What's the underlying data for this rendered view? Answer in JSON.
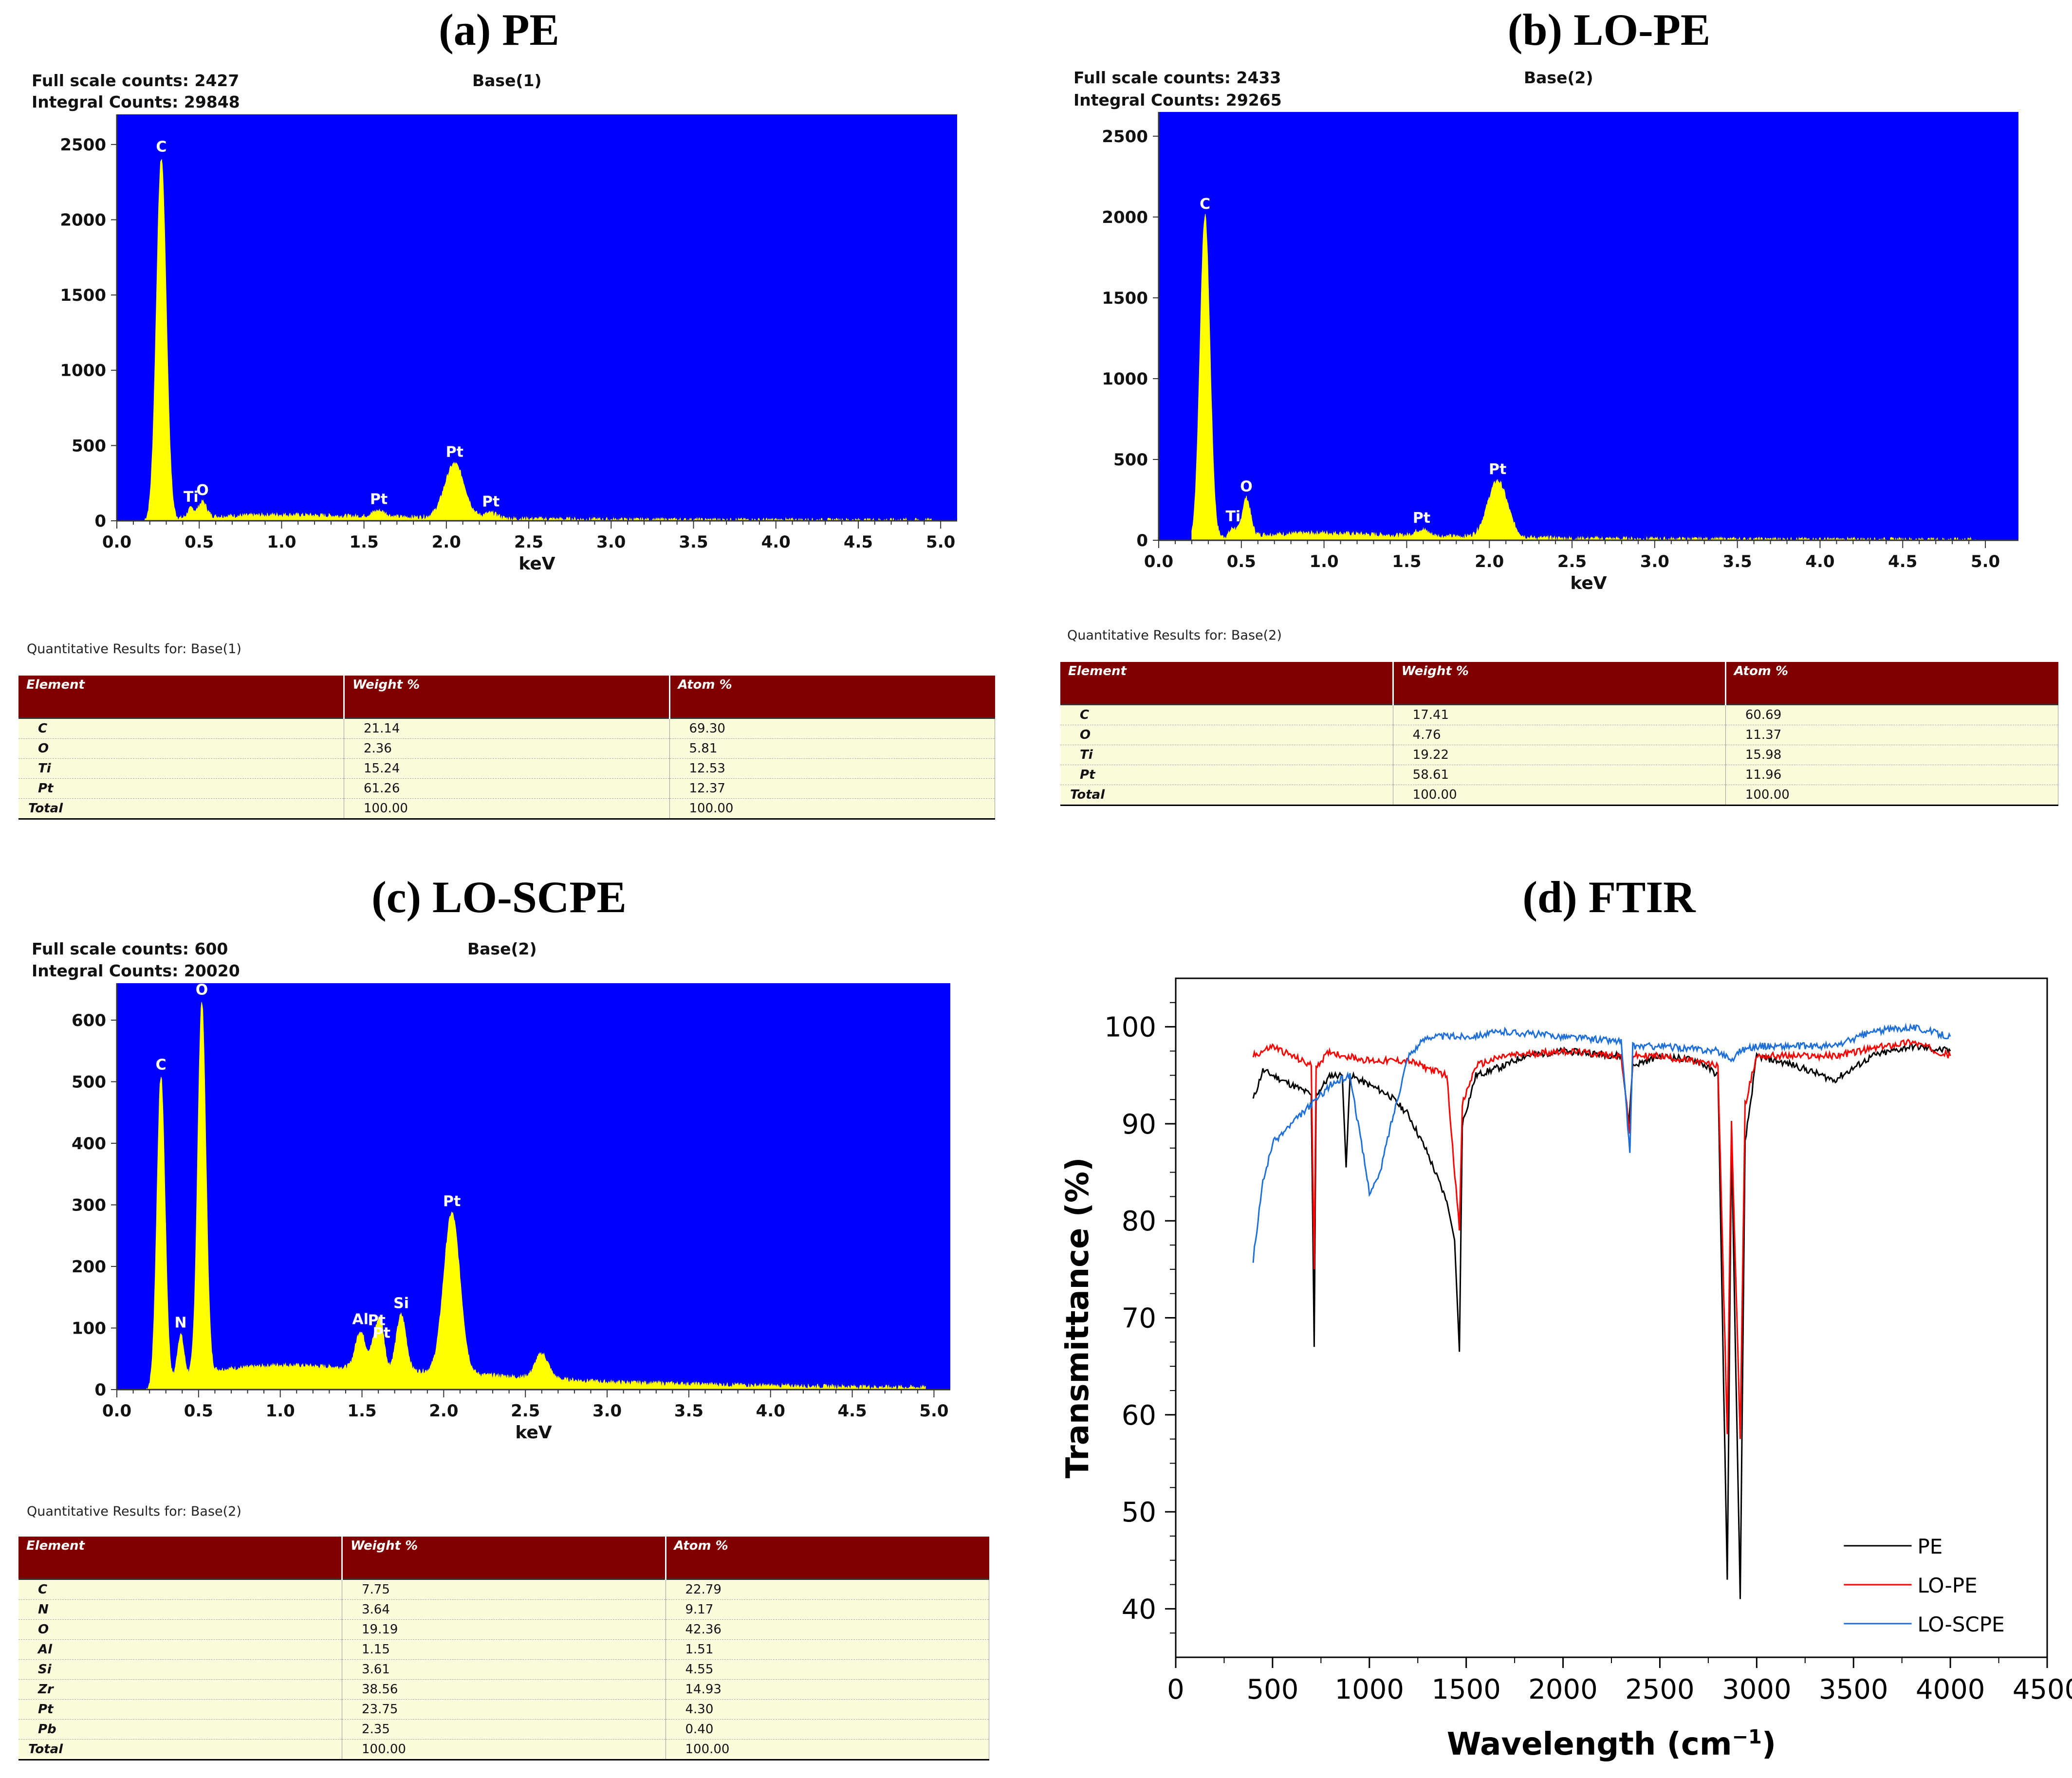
{
  "panels": [
    {
      "title": "(a) PE",
      "full_scale": "Full scale counts: 2427",
      "integral": "Integral Counts: 29848",
      "base": "Base(1)",
      "quant_title": "Quantitative Results for: Base(1)",
      "table": {
        "headers": [
          "Element",
          "Weight %",
          "Atom %"
        ],
        "rows": [
          [
            "C",
            "21.14",
            "69.30"
          ],
          [
            "O",
            "2.36",
            "5.81"
          ],
          [
            "Ti",
            "15.24",
            "12.53"
          ],
          [
            "Pt",
            "61.26",
            "12.37"
          ],
          [
            "Total",
            "100.00",
            "100.00"
          ]
        ]
      }
    },
    {
      "title": "(b) LO-PE",
      "full_scale": "Full scale counts: 2433",
      "integral": "Integral Counts: 29265",
      "base": "Base(2)",
      "quant_title": "Quantitative Results for: Base(2)",
      "table": {
        "headers": [
          "Element",
          "Weight %",
          "Atom %"
        ],
        "rows": [
          [
            "C",
            "17.41",
            "60.69"
          ],
          [
            "O",
            "4.76",
            "11.37"
          ],
          [
            "Ti",
            "19.22",
            "15.98"
          ],
          [
            "Pt",
            "58.61",
            "11.96"
          ],
          [
            "Total",
            "100.00",
            "100.00"
          ]
        ]
      }
    },
    {
      "title": "(c) LO-SCPE",
      "full_scale": "Full scale counts: 600",
      "integral": "Integral Counts: 20020",
      "base": "Base(2)",
      "quant_title": "Quantitative Results for: Base(2)",
      "table": {
        "headers": [
          "Element",
          "Weight %",
          "Atom %"
        ],
        "rows": [
          [
            "C",
            "7.75",
            "22.79"
          ],
          [
            "N",
            "3.64",
            "9.17"
          ],
          [
            "O",
            "19.19",
            "42.36"
          ],
          [
            "Al",
            "1.15",
            "1.51"
          ],
          [
            "Si",
            "3.61",
            "4.55"
          ],
          [
            "Zr",
            "38.56",
            "14.93"
          ],
          [
            "Pt",
            "23.75",
            "4.30"
          ],
          [
            "Pb",
            "2.35",
            "0.40"
          ],
          [
            "Total",
            "100.00",
            "100.00"
          ]
        ]
      }
    },
    {
      "title": "(d) FTIR"
    }
  ],
  "chart_data": [
    {
      "type": "area",
      "panel": "a",
      "xlabel": "keV",
      "xlim": [
        0,
        5.1
      ],
      "ylim": [
        0,
        2700
      ],
      "xticks": [
        "0.0",
        "0.5",
        "1.0",
        "1.5",
        "2.0",
        "2.5",
        "3.0",
        "3.5",
        "4.0",
        "4.5",
        "5.0"
      ],
      "yticks": [
        "0",
        "500",
        "1000",
        "1500",
        "2000",
        "2500"
      ],
      "ytick_values": [
        0,
        500,
        1000,
        1500,
        2000,
        2500
      ],
      "bg_color": "#0000ff",
      "fill_color": "#ffff00",
      "baseline": [
        [
          0.17,
          0
        ],
        [
          0.5,
          25
        ],
        [
          1.0,
          40
        ],
        [
          1.5,
          28
        ],
        [
          2.5,
          12
        ],
        [
          3.0,
          6
        ],
        [
          4.0,
          3
        ],
        [
          5.0,
          2
        ]
      ],
      "peaks": [
        {
          "label": "C",
          "x": 0.27,
          "y": 2400,
          "w": 0.03
        },
        {
          "label": "Ti",
          "x": 0.45,
          "y": 60,
          "w": 0.02
        },
        {
          "label": "O",
          "x": 0.52,
          "y": 100,
          "w": 0.025
        },
        {
          "label": "Pt",
          "x": 1.59,
          "y": 40,
          "w": 0.04
        },
        {
          "label": "Pt",
          "x": 2.05,
          "y": 360,
          "w": 0.06
        },
        {
          "label": "Pt",
          "x": 2.27,
          "y": 35,
          "w": 0.04
        }
      ]
    },
    {
      "type": "area",
      "panel": "b",
      "xlabel": "keV",
      "xlim": [
        0,
        5.2
      ],
      "ylim": [
        0,
        2650
      ],
      "xticks": [
        "0.0",
        "0.5",
        "1.0",
        "1.5",
        "2.0",
        "2.5",
        "3.0",
        "3.5",
        "4.0",
        "4.5",
        "5.0"
      ],
      "yticks": [
        "0",
        "500",
        "1000",
        "1500",
        "2000",
        "2500"
      ],
      "ytick_values": [
        0,
        500,
        1000,
        1500,
        2000,
        2500
      ],
      "bg_color": "#0000ff",
      "fill_color": "#ffff00",
      "baseline": [
        [
          0.2,
          0
        ],
        [
          0.5,
          30
        ],
        [
          1.0,
          45
        ],
        [
          1.5,
          28
        ],
        [
          2.5,
          10
        ],
        [
          3.0,
          6
        ],
        [
          4.0,
          3
        ],
        [
          5.0,
          2
        ]
      ],
      "peaks": [
        {
          "label": "C",
          "x": 0.28,
          "y": 2000,
          "w": 0.03
        },
        {
          "label": "Ti",
          "x": 0.45,
          "y": 50,
          "w": 0.02
        },
        {
          "label": "O",
          "x": 0.53,
          "y": 230,
          "w": 0.025
        },
        {
          "label": "Pt",
          "x": 1.59,
          "y": 40,
          "w": 0.04
        },
        {
          "label": "Pt",
          "x": 2.05,
          "y": 350,
          "w": 0.06
        }
      ]
    },
    {
      "type": "area",
      "panel": "c",
      "xlabel": "keV",
      "xlim": [
        0,
        5.1
      ],
      "ylim": [
        0,
        660
      ],
      "xticks": [
        "0.0",
        "0.5",
        "1.0",
        "1.5",
        "2.0",
        "2.5",
        "3.0",
        "3.5",
        "4.0",
        "4.5",
        "5.0"
      ],
      "yticks": [
        "0",
        "100",
        "200",
        "300",
        "400",
        "500",
        "600"
      ],
      "ytick_values": [
        0,
        100,
        200,
        300,
        400,
        500,
        600
      ],
      "bg_color": "#0000ff",
      "fill_color": "#ffff00",
      "baseline": [
        [
          0.18,
          0
        ],
        [
          0.5,
          30
        ],
        [
          1.0,
          40
        ],
        [
          1.5,
          35
        ],
        [
          2.5,
          20
        ],
        [
          3.0,
          12
        ],
        [
          4.0,
          6
        ],
        [
          5.0,
          3
        ]
      ],
      "peaks": [
        {
          "label": "C",
          "x": 0.27,
          "y": 500,
          "w": 0.025
        },
        {
          "label": "N",
          "x": 0.39,
          "y": 70,
          "w": 0.02
        },
        {
          "label": "O",
          "x": 0.52,
          "y": 600,
          "w": 0.025
        },
        {
          "label": "Al",
          "x": 1.49,
          "y": 60,
          "w": 0.03
        },
        {
          "label": "Pt",
          "x": 1.59,
          "y": 60,
          "w": 0.03
        },
        {
          "label": "Pt",
          "x": 1.62,
          "y": 40,
          "w": 0.02
        },
        {
          "label": "Si",
          "x": 1.74,
          "y": 90,
          "w": 0.03
        },
        {
          "label": "Pt",
          "x": 2.05,
          "y": 260,
          "w": 0.05
        },
        {
          "label": "",
          "x": 2.6,
          "y": 40,
          "w": 0.04
        }
      ]
    },
    {
      "type": "line",
      "panel": "d",
      "xlabel": "Wavelength (cm",
      "xlabel_sup": "−1",
      "xlabel_close": ")",
      "ylabel": "Transmittance (%)",
      "xlim": [
        0,
        4500
      ],
      "ylim": [
        35,
        105
      ],
      "xticks": [
        "0",
        "500",
        "1000",
        "1500",
        "2000",
        "2500",
        "3000",
        "3500",
        "4000",
        "4500"
      ],
      "xtick_values": [
        0,
        500,
        1000,
        1500,
        2000,
        2500,
        3000,
        3500,
        4000,
        4500
      ],
      "yticks": [
        "40",
        "50",
        "60",
        "70",
        "80",
        "90",
        "100"
      ],
      "ytick_values": [
        40,
        50,
        60,
        70,
        80,
        90,
        100
      ],
      "series": [
        {
          "name": "PE",
          "color": "#000000",
          "points": [
            [
              400,
              92.5
            ],
            [
              450,
              95.5
            ],
            [
              500,
              95
            ],
            [
              600,
              94
            ],
            [
              700,
              93
            ],
            [
              715,
              67
            ],
            [
              725,
              93
            ],
            [
              800,
              95
            ],
            [
              860,
              95
            ],
            [
              880,
              85.5
            ],
            [
              900,
              95
            ],
            [
              1000,
              94
            ],
            [
              1100,
              93
            ],
            [
              1200,
              91
            ],
            [
              1300,
              87
            ],
            [
              1400,
              82
            ],
            [
              1440,
              78
            ],
            [
              1465,
              66.5
            ],
            [
              1480,
              90
            ],
            [
              1550,
              95
            ],
            [
              1700,
              96
            ],
            [
              1800,
              97
            ],
            [
              2000,
              97.5
            ],
            [
              2300,
              97
            ],
            [
              2340,
              90
            ],
            [
              2360,
              96
            ],
            [
              2500,
              97
            ],
            [
              2700,
              96.5
            ],
            [
              2800,
              95
            ],
            [
              2848,
              43
            ],
            [
              2870,
              88
            ],
            [
              2915,
              41
            ],
            [
              2940,
              88
            ],
            [
              3000,
              97
            ],
            [
              3200,
              96
            ],
            [
              3400,
              94.5
            ],
            [
              3600,
              97
            ],
            [
              3800,
              98
            ],
            [
              4000,
              97.5
            ]
          ]
        },
        {
          "name": "LO-PE",
          "color": "#ff0000",
          "points": [
            [
              400,
              97
            ],
            [
              500,
              98
            ],
            [
              600,
              97
            ],
            [
              700,
              96
            ],
            [
              715,
              75
            ],
            [
              725,
              96
            ],
            [
              800,
              97.5
            ],
            [
              860,
              97
            ],
            [
              880,
              97
            ],
            [
              1000,
              96.5
            ],
            [
              1200,
              96.5
            ],
            [
              1400,
              95
            ],
            [
              1465,
              79
            ],
            [
              1480,
              92
            ],
            [
              1550,
              96
            ],
            [
              1700,
              97
            ],
            [
              2000,
              97.5
            ],
            [
              2300,
              97
            ],
            [
              2345,
              89
            ],
            [
              2360,
              97
            ],
            [
              2500,
              97
            ],
            [
              2800,
              96
            ],
            [
              2848,
              58
            ],
            [
              2870,
              90
            ],
            [
              2915,
              57.5
            ],
            [
              2940,
              92
            ],
            [
              3000,
              97
            ],
            [
              3400,
              97
            ],
            [
              3800,
              98.5
            ],
            [
              4000,
              97
            ]
          ]
        },
        {
          "name": "LO-SCPE",
          "color": "#1f6fd9",
          "points": [
            [
              400,
              76
            ],
            [
              450,
              84
            ],
            [
              500,
              88
            ],
            [
              600,
              90
            ],
            [
              700,
              92
            ],
            [
              800,
              94
            ],
            [
              900,
              95
            ],
            [
              1000,
              83
            ],
            [
              1050,
              84.5
            ],
            [
              1100,
              89
            ],
            [
              1200,
              97
            ],
            [
              1300,
              99
            ],
            [
              1500,
              99
            ],
            [
              1700,
              99.5
            ],
            [
              2000,
              99
            ],
            [
              2300,
              98.5
            ],
            [
              2345,
              87
            ],
            [
              2360,
              98
            ],
            [
              2500,
              98
            ],
            [
              2800,
              97.5
            ],
            [
              2880,
              96.5
            ],
            [
              2900,
              97.5
            ],
            [
              3000,
              98
            ],
            [
              3400,
              98
            ],
            [
              3600,
              99.5
            ],
            [
              3800,
              100
            ],
            [
              4000,
              99
            ]
          ]
        }
      ]
    }
  ]
}
